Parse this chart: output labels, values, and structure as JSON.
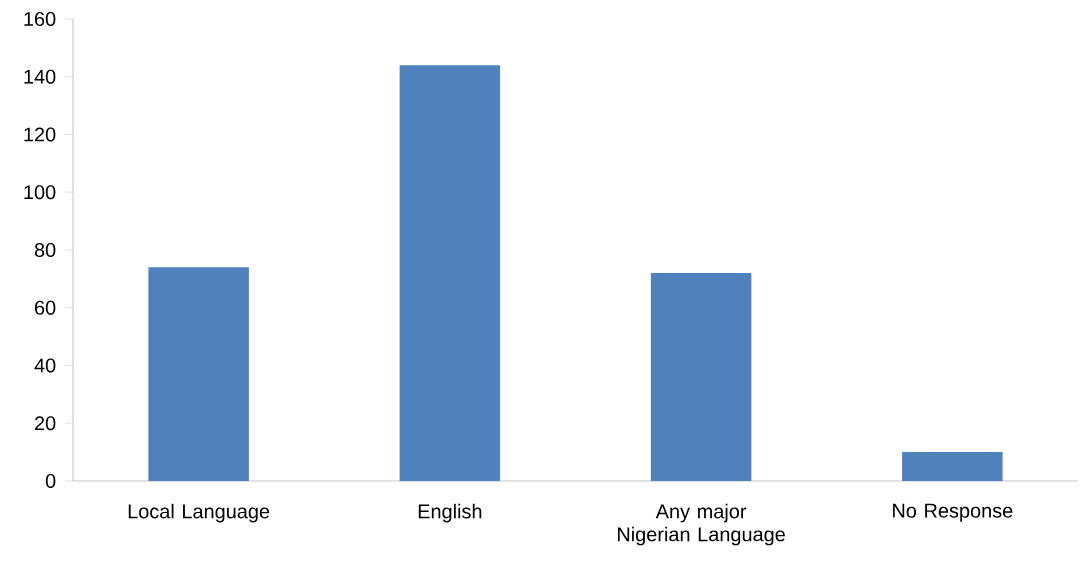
{
  "chart_data": {
    "type": "bar",
    "categories": [
      "Local Language",
      "English",
      "Any major Nigerian Language",
      "No Response"
    ],
    "values": [
      74,
      144,
      72,
      10
    ],
    "color": "#4f81bd",
    "ylim": [
      0,
      160
    ],
    "yticks": [
      0,
      20,
      40,
      60,
      80,
      100,
      120,
      140,
      160
    ]
  }
}
